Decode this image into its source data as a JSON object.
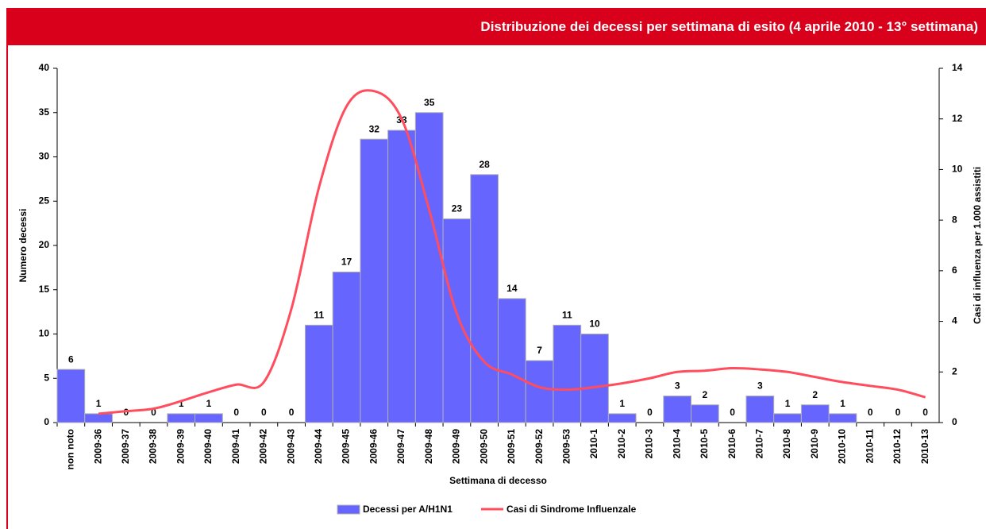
{
  "chart_data": {
    "type": "bar",
    "title": "Distribuzione dei decessi per settimana di esito (4 aprile 2010 - 13° settimana)",
    "x_label": "Settimana di decesso",
    "y_label": "Numero decessi",
    "y2_label": "Casi di influenza per 1.000 assistiti",
    "categories": [
      "non noto",
      "2009-36",
      "2009-37",
      "2009-38",
      "2009-39",
      "2009-40",
      "2009-41",
      "2009-42",
      "2009-43",
      "2009-44",
      "2009-45",
      "2009-46",
      "2009-47",
      "2009-48",
      "2009-49",
      "2009-50",
      "2009-51",
      "2009-52",
      "2009-53",
      "2010-1",
      "2010-2",
      "2010-3",
      "2010-4",
      "2010-5",
      "2010-6",
      "2010-7",
      "2010-8",
      "2010-9",
      "2010-10",
      "2010-11",
      "2010-12",
      "2010-13"
    ],
    "series": [
      {
        "name": "Decessi per A/H1N1",
        "type": "bar",
        "color": "#6666ff",
        "values": [
          6,
          1,
          0,
          0,
          1,
          1,
          0,
          0,
          0,
          11,
          17,
          32,
          33,
          35,
          23,
          28,
          14,
          7,
          11,
          10,
          1,
          0,
          3,
          2,
          0,
          3,
          1,
          2,
          1,
          0,
          0,
          0
        ]
      },
      {
        "name": "Casi di Sindrome Influenzale",
        "type": "line",
        "axis": "y2",
        "color": "#ff4d5e",
        "values": [
          null,
          0.35,
          0.45,
          0.55,
          0.85,
          1.2,
          1.5,
          1.6,
          4.5,
          9.3,
          12.5,
          13.1,
          12.0,
          8.4,
          4.3,
          2.4,
          1.9,
          1.4,
          1.3,
          1.4,
          1.55,
          1.75,
          2.0,
          2.05,
          2.15,
          2.1,
          2.0,
          1.8,
          1.6,
          1.45,
          1.3,
          1.0
        ]
      }
    ],
    "ylim": [
      0,
      40
    ],
    "yticks": [
      0,
      5,
      10,
      15,
      20,
      25,
      30,
      35,
      40
    ],
    "y2lim": [
      0,
      14
    ],
    "y2ticks": [
      0,
      2,
      4,
      6,
      8,
      10,
      12,
      14
    ],
    "data_labels": true,
    "legend": "bottom"
  }
}
